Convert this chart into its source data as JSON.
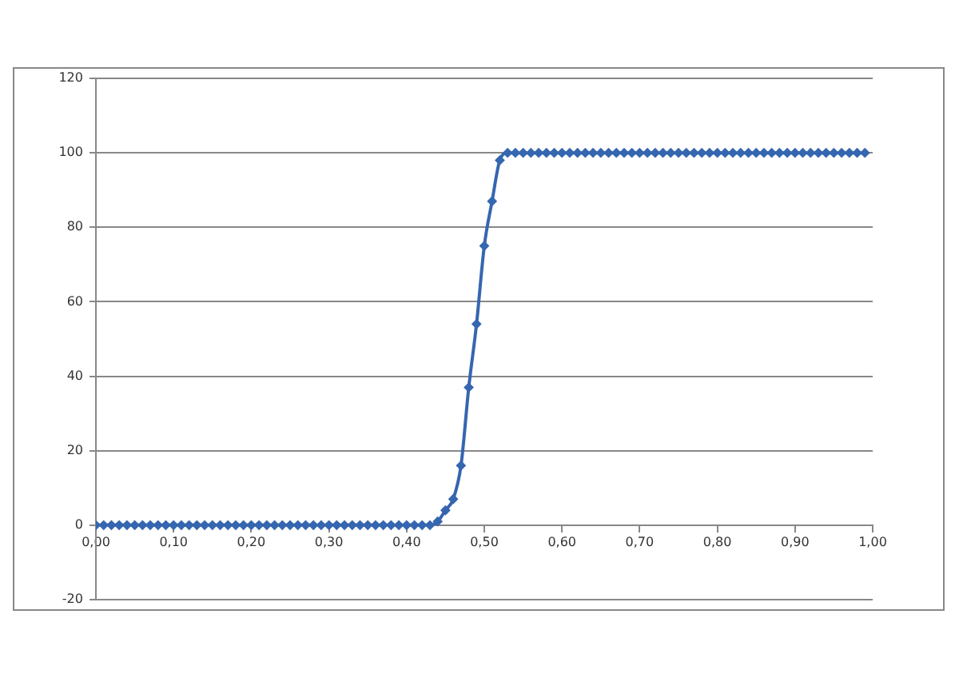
{
  "chart_data": {
    "type": "line",
    "x": [
      0,
      0.01,
      0.02,
      0.03,
      0.04,
      0.05,
      0.06,
      0.07,
      0.08,
      0.09,
      0.1,
      0.11,
      0.12,
      0.13,
      0.14,
      0.15,
      0.16,
      0.17,
      0.18,
      0.19,
      0.2,
      0.21,
      0.22,
      0.23,
      0.24,
      0.25,
      0.26,
      0.27,
      0.28,
      0.29,
      0.3,
      0.31,
      0.32,
      0.33,
      0.34,
      0.35,
      0.36,
      0.37,
      0.38,
      0.39,
      0.4,
      0.41,
      0.42,
      0.43,
      0.44,
      0.45,
      0.46,
      0.47,
      0.48,
      0.49,
      0.5,
      0.51,
      0.52,
      0.53,
      0.54,
      0.55,
      0.56,
      0.57,
      0.58,
      0.59,
      0.6,
      0.61,
      0.62,
      0.63,
      0.64,
      0.65,
      0.66,
      0.67,
      0.68,
      0.69,
      0.7,
      0.71,
      0.72,
      0.73,
      0.74,
      0.75,
      0.76,
      0.77,
      0.78,
      0.79,
      0.8,
      0.81,
      0.82,
      0.83,
      0.84,
      0.85,
      0.86,
      0.87,
      0.88,
      0.89,
      0.9,
      0.91,
      0.92,
      0.93,
      0.94,
      0.95,
      0.96,
      0.97,
      0.98,
      0.99
    ],
    "series": [
      {
        "color": "#3566b0",
        "values": [
          0,
          0,
          0,
          0,
          0,
          0,
          0,
          0,
          0,
          0,
          0,
          0,
          0,
          0,
          0,
          0,
          0,
          0,
          0,
          0,
          0,
          0,
          0,
          0,
          0,
          0,
          0,
          0,
          0,
          0,
          0,
          0,
          0,
          0,
          0,
          0,
          0,
          0,
          0,
          0,
          0,
          0,
          0,
          0,
          1,
          4,
          7,
          16,
          37,
          54,
          75,
          87,
          98,
          100,
          100,
          100,
          100,
          100,
          100,
          100,
          100,
          100,
          100,
          100,
          100,
          100,
          100,
          100,
          100,
          100,
          100,
          100,
          100,
          100,
          100,
          100,
          100,
          100,
          100,
          100,
          100,
          100,
          100,
          100,
          100,
          100,
          100,
          100,
          100,
          100,
          100,
          100,
          100,
          100,
          100,
          100,
          100,
          100,
          100,
          100
        ]
      }
    ],
    "xlim": [
      0,
      1
    ],
    "xticks": [
      {
        "value": 0,
        "label": "0,00"
      },
      {
        "value": 0.1,
        "label": "0,10"
      },
      {
        "value": 0.2,
        "label": "0,20"
      },
      {
        "value": 0.3,
        "label": "0,30"
      },
      {
        "value": 0.4,
        "label": "0,40"
      },
      {
        "value": 0.5,
        "label": "0,50"
      },
      {
        "value": 0.6,
        "label": "0,60"
      },
      {
        "value": 0.7,
        "label": "0,70"
      },
      {
        "value": 0.8,
        "label": "0,80"
      },
      {
        "value": 0.9,
        "label": "0,90"
      },
      {
        "value": 1,
        "label": "1,00"
      }
    ],
    "ylim": [
      -20,
      120
    ],
    "yticks": [
      -20,
      0,
      20,
      40,
      60,
      80,
      100,
      120
    ],
    "grid": "y",
    "legend": false,
    "marker": "diamond",
    "line_style": "solid"
  }
}
